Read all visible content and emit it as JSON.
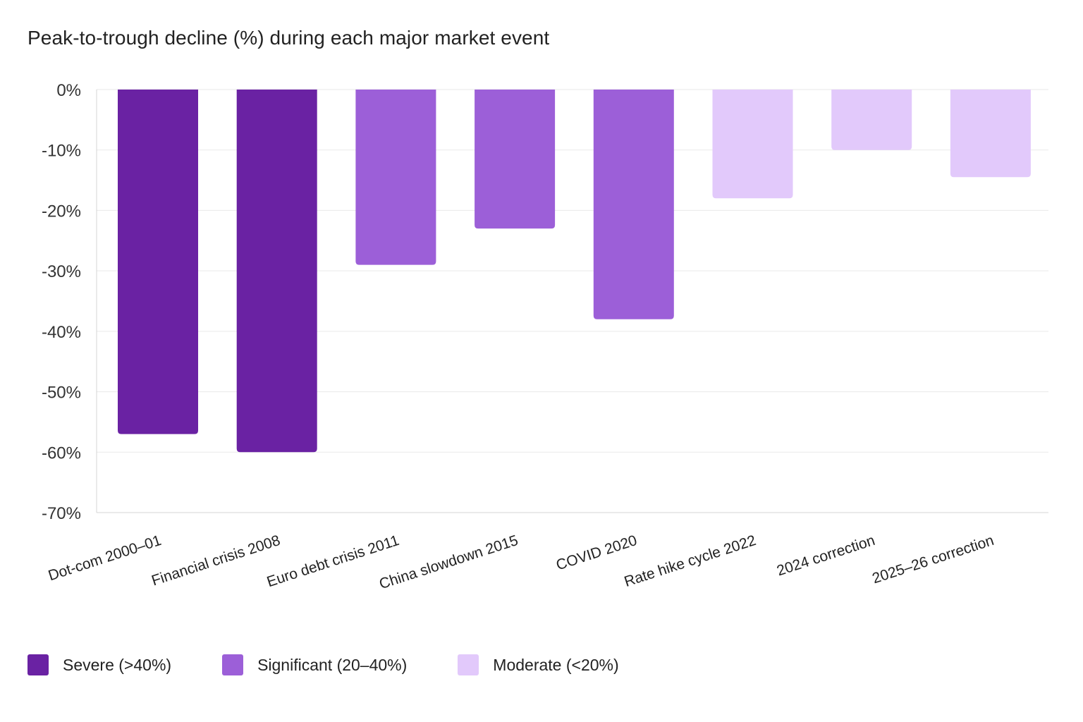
{
  "chart_data": {
    "type": "bar",
    "title": "Peak-to-trough decline (%) during each major market event",
    "xlabel": "",
    "ylabel": "",
    "ylim": [
      -70,
      0
    ],
    "yticks": [
      0,
      -10,
      -20,
      -30,
      -40,
      -50,
      -60,
      -70
    ],
    "ytick_labels": [
      "0%",
      "-10%",
      "-20%",
      "-30%",
      "-40%",
      "-50%",
      "-60%",
      "-70%"
    ],
    "grid": true,
    "categories": [
      "Dot-com 2000–01",
      "Financial crisis 2008",
      "Euro debt crisis 2011",
      "China slowdown 2015",
      "COVID 2020",
      "Rate hike cycle 2022",
      "2024 correction",
      "2025–26 correction"
    ],
    "values": [
      -57,
      -60,
      -29,
      -23,
      -38,
      -18,
      -10,
      -14.5
    ],
    "bar_groups": [
      "severe",
      "severe",
      "significant",
      "significant",
      "significant",
      "moderate",
      "moderate",
      "moderate"
    ],
    "legend_position": "bottom-left",
    "legend": [
      {
        "key": "severe",
        "label": "Severe (>40%)",
        "color": "#6a22a3"
      },
      {
        "key": "significant",
        "label": "Significant (20–40%)",
        "color": "#9c5fd8"
      },
      {
        "key": "moderate",
        "label": "Moderate (<20%)",
        "color": "#e2c9fb"
      }
    ]
  }
}
